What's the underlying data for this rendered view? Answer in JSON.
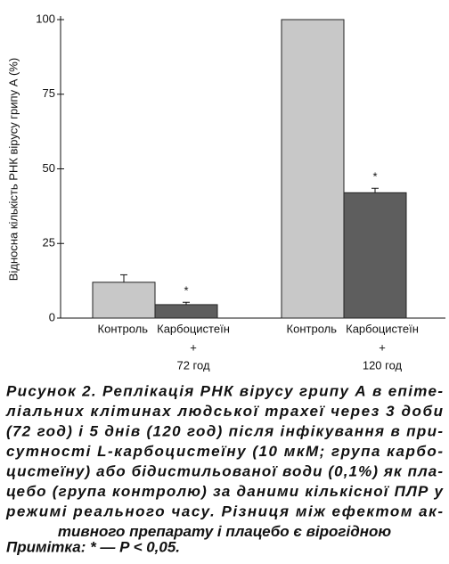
{
  "chart_data": {
    "type": "bar",
    "y_label": "Відносна кількість РНК вірусу грипу А (%)",
    "categories": [
      "72 год",
      "120 год"
    ],
    "connector": "+",
    "series": [
      {
        "name": "Контроль",
        "color": "#c8c8c8",
        "values": [
          12,
          100
        ],
        "errors": [
          2.5,
          null
        ],
        "annotations": [
          null,
          null
        ]
      },
      {
        "name": "Карбоцистеїн",
        "color": "#5e5e5e",
        "values": [
          4.5,
          42
        ],
        "errors": [
          0.8,
          1.5
        ],
        "annotations": [
          "*",
          "*"
        ]
      }
    ],
    "ylim": [
      0,
      100
    ],
    "yticks": [
      0,
      25,
      50,
      75,
      100
    ]
  },
  "caption": {
    "lines": [
      "Рисунок 2. Реплікація РНК вірусу грипу А в епіте-",
      "ліальних клітинах людської трахеї через 3 доби",
      "(72 год) і 5 днів (120 год) після інфікування в при-",
      "сутності L-карбоцистеїну (10 мкМ; група карбо-",
      "цистеїну) або бідистильованої води (0,1%) як пла-",
      "цебо (група контролю) за даними кількісної ПЛР у",
      "режимі реального часу. Різниця між ефектом ак-",
      "тивного препарату і плацебо є вірогідною"
    ],
    "note": "Примітка: * — P < 0,05."
  }
}
